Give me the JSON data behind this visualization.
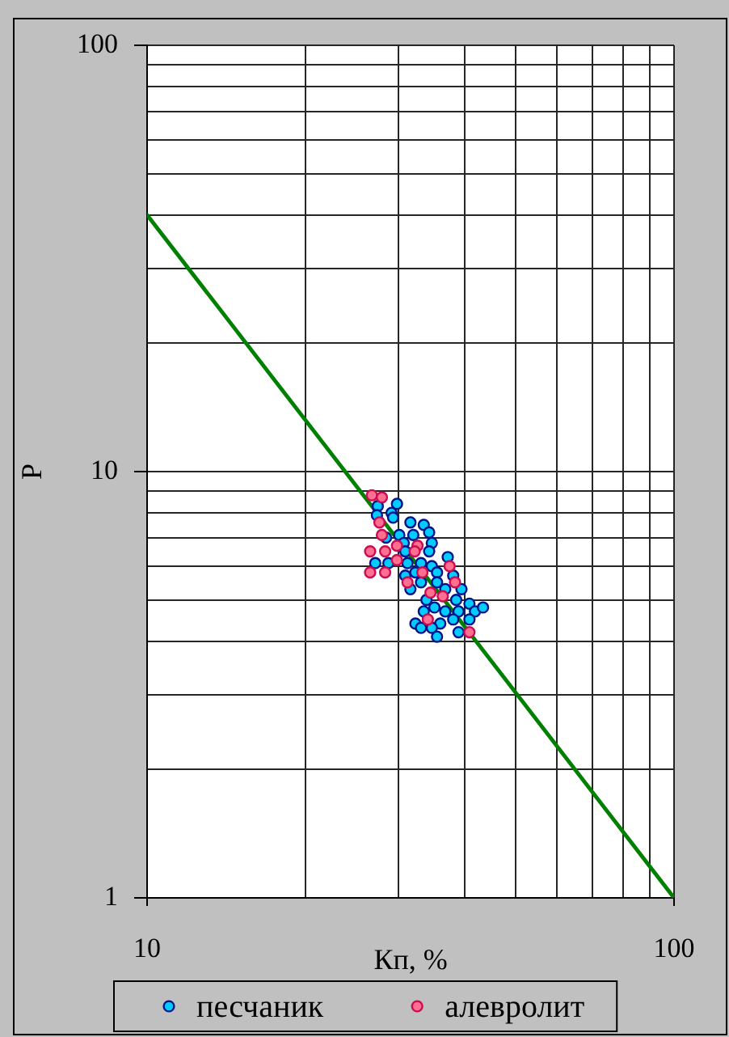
{
  "chart_data": {
    "type": "scatter",
    "xlabel": "Кп, %",
    "ylabel": "P",
    "log": "xy",
    "xlim": [
      10,
      100
    ],
    "ylim": [
      1,
      100
    ],
    "xticks": [
      10,
      {
        "value": 20,
        "label": null
      },
      {
        "value": 30,
        "label": null
      },
      {
        "value": 40,
        "label": null
      },
      {
        "value": 50,
        "label": null
      },
      {
        "value": 60,
        "label": null
      },
      {
        "value": 70,
        "label": null
      },
      {
        "value": 80,
        "label": null
      },
      {
        "value": 90,
        "label": null
      },
      100
    ],
    "yticks": [
      1,
      {
        "value": 2,
        "label": null
      },
      {
        "value": 3,
        "label": null
      },
      {
        "value": 4,
        "label": null
      },
      {
        "value": 5,
        "label": null
      },
      {
        "value": 6,
        "label": null
      },
      {
        "value": 7,
        "label": null
      },
      {
        "value": 8,
        "label": null
      },
      {
        "value": 9,
        "label": null
      },
      10,
      {
        "value": 20,
        "label": null
      },
      {
        "value": 30,
        "label": null
      },
      {
        "value": 40,
        "label": null
      },
      {
        "value": 50,
        "label": null
      },
      {
        "value": 60,
        "label": null
      },
      {
        "value": 70,
        "label": null
      },
      {
        "value": 80,
        "label": null
      },
      {
        "value": 90,
        "label": null
      },
      100
    ],
    "grid": true,
    "legend": "bottom",
    "marker": "circle",
    "series": [
      {
        "name": "песчаник",
        "color": "#00ccff",
        "x": [
          27.4,
          29.8,
          29.1,
          27.3,
          29.3,
          31.6,
          33.5,
          34.3,
          32.0,
          30.1,
          28.4,
          30.7,
          34.7,
          30.9,
          34.3,
          27.1,
          28.7,
          31.2,
          33.1,
          34.7,
          37.2,
          32.3,
          35.5,
          30.9,
          31.6,
          33.1,
          35.5,
          38.1,
          39.5,
          36.8,
          33.9,
          38.6,
          40.9,
          35.1,
          36.8,
          39.0,
          41.9,
          43.4,
          33.5,
          38.1,
          40.9,
          32.3,
          36.0,
          34.7,
          35.5,
          39.0,
          33.1
        ],
        "values": [
          8.3,
          8.4,
          8.0,
          7.9,
          7.8,
          7.6,
          7.5,
          7.2,
          7.1,
          7.1,
          7.0,
          6.8,
          6.8,
          6.5,
          6.5,
          6.1,
          6.1,
          6.1,
          6.1,
          6.0,
          6.3,
          5.8,
          5.8,
          5.7,
          5.3,
          5.5,
          5.5,
          5.7,
          5.3,
          5.3,
          5.0,
          5.0,
          4.9,
          4.8,
          4.7,
          4.7,
          4.7,
          4.8,
          4.7,
          4.5,
          4.5,
          4.4,
          4.4,
          4.3,
          4.1,
          4.2,
          4.3
        ]
      },
      {
        "name": "алевролит",
        "color": "#ff6f8f",
        "x": [
          26.7,
          27.9,
          27.6,
          27.9,
          26.5,
          28.3,
          29.8,
          32.6,
          32.2,
          29.8,
          26.5,
          28.3,
          37.5,
          33.3,
          38.4,
          31.2,
          34.5,
          36.4,
          34.1,
          40.9
        ],
        "values": [
          8.8,
          8.7,
          7.6,
          7.1,
          6.5,
          6.5,
          6.7,
          6.7,
          6.5,
          6.2,
          5.8,
          5.8,
          6.0,
          5.8,
          5.5,
          5.5,
          5.2,
          5.1,
          4.5,
          4.2
        ]
      },
      {
        "type": "line",
        "color": "#008000",
        "marker": "none",
        "x": [
          10,
          100
        ],
        "values": [
          40,
          1
        ]
      }
    ]
  }
}
